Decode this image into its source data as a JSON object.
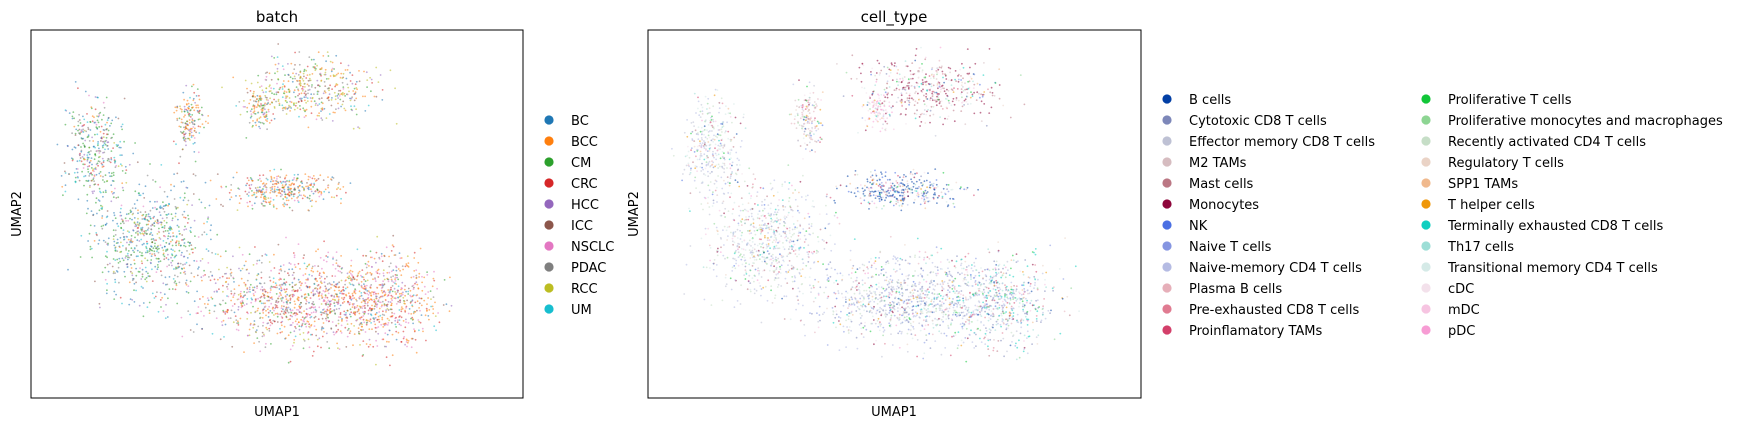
{
  "chart_data": [
    {
      "type": "scatter",
      "title": "batch",
      "xlabel": "UMAP1",
      "ylabel": "UMAP2",
      "grid": false,
      "ticks": false,
      "legend_position": "right",
      "legend": [
        {
          "label": "BC",
          "color": "#1f77b4"
        },
        {
          "label": "BCC",
          "color": "#ff7f0e"
        },
        {
          "label": "CM",
          "color": "#2ca02c"
        },
        {
          "label": "CRC",
          "color": "#d62728"
        },
        {
          "label": "HCC",
          "color": "#9467bd"
        },
        {
          "label": "ICC",
          "color": "#8c564b"
        },
        {
          "label": "NSCLC",
          "color": "#e377c2"
        },
        {
          "label": "PDAC",
          "color": "#7f7f7f"
        },
        {
          "label": "RCC",
          "color": "#bcbd22"
        },
        {
          "label": "UM",
          "color": "#17becf"
        }
      ]
    },
    {
      "type": "scatter",
      "title": "cell_type",
      "xlabel": "UMAP1",
      "ylabel": "UMAP2",
      "grid": false,
      "ticks": false,
      "legend_position": "right",
      "legend_columns": 2,
      "legend": [
        {
          "label": "B cells",
          "color": "#023fa5"
        },
        {
          "label": "Cytotoxic CD8 T cells",
          "color": "#7d87b9"
        },
        {
          "label": "Effector memory CD8 T cells",
          "color": "#bec1d4"
        },
        {
          "label": "M2 TAMs",
          "color": "#d6bcc0"
        },
        {
          "label": "Mast cells",
          "color": "#bb7784"
        },
        {
          "label": "Monocytes",
          "color": "#8e063b"
        },
        {
          "label": "NK",
          "color": "#4a6fe3"
        },
        {
          "label": "Naive T cells",
          "color": "#8595e1"
        },
        {
          "label": "Naive-memory CD4 T cells",
          "color": "#b5bbe3"
        },
        {
          "label": "Plasma B cells",
          "color": "#e6afb9"
        },
        {
          "label": "Pre-exhausted CD8 T cells",
          "color": "#e07b91"
        },
        {
          "label": "Proinflamatory TAMs",
          "color": "#d33f6a"
        },
        {
          "label": "Proliferative T cells",
          "color": "#11c638"
        },
        {
          "label": "Proliferative monocytes and macrophages",
          "color": "#8dd593"
        },
        {
          "label": "Recently activated CD4 T cells",
          "color": "#c6dec7"
        },
        {
          "label": "Regulatory T cells",
          "color": "#ead3c6"
        },
        {
          "label": "SPP1 TAMs",
          "color": "#f0b98d"
        },
        {
          "label": "T helper cells",
          "color": "#ef9708"
        },
        {
          "label": "Terminally exhausted CD8 T cells",
          "color": "#0fcfc0"
        },
        {
          "label": "Th17 cells",
          "color": "#9cded6"
        },
        {
          "label": "Transitional memory CD4 T cells",
          "color": "#d5eae7"
        },
        {
          "label": "cDC",
          "color": "#f3e1eb"
        },
        {
          "label": "mDC",
          "color": "#f6c4e1"
        },
        {
          "label": "pDC",
          "color": "#f79cd4"
        }
      ]
    }
  ]
}
